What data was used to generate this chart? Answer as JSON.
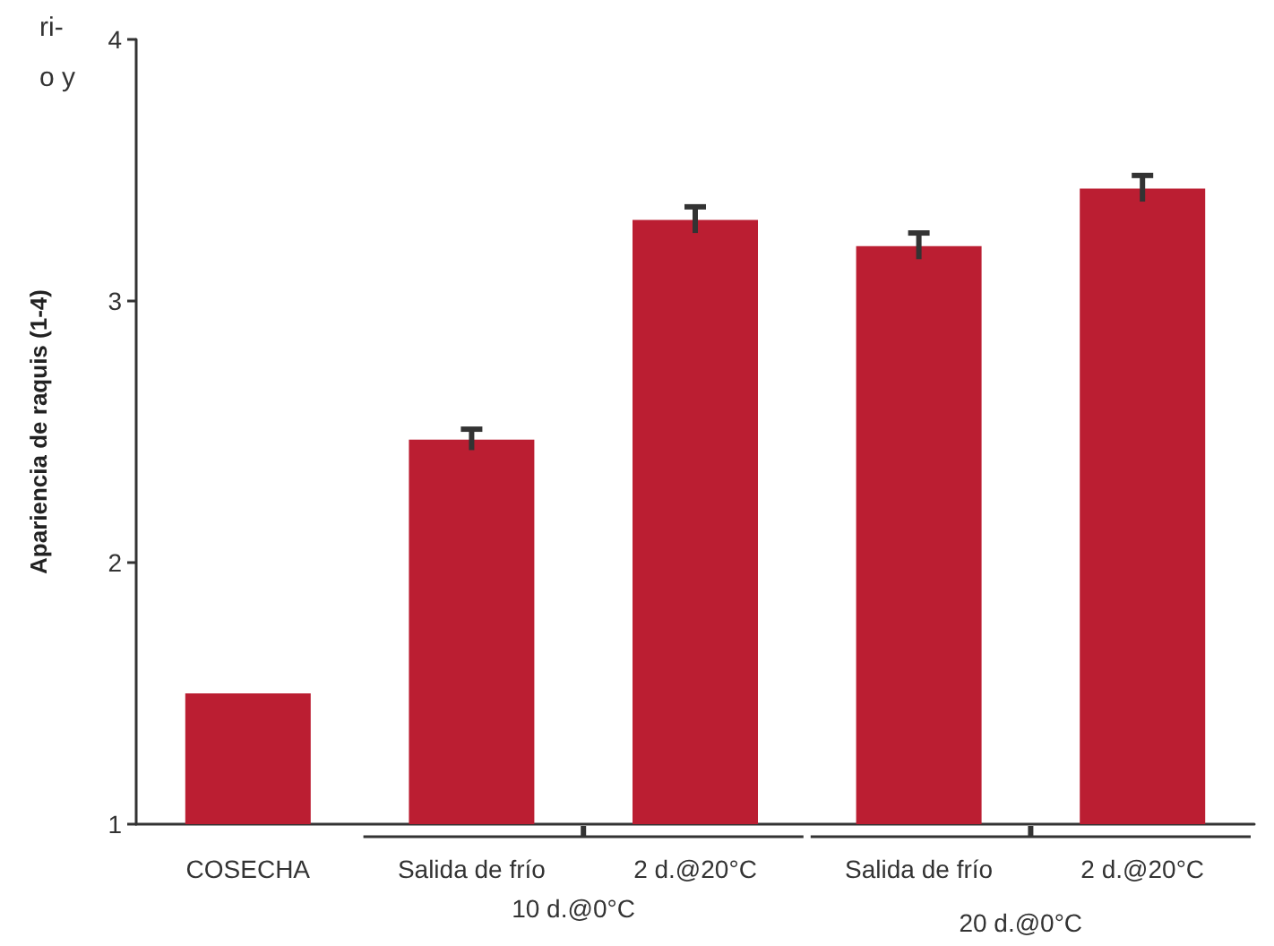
{
  "chart_data": {
    "type": "bar",
    "ylabel": "Apariencia de raquis (1-4)",
    "categories": [
      "COSECHA",
      "Salida de frío",
      "2 d.@20°C",
      "Salida de frío",
      "2 d.@20°C"
    ],
    "values": [
      1.5,
      2.47,
      3.31,
      3.21,
      3.43
    ],
    "errors": [
      null,
      0.04,
      0.05,
      0.05,
      0.05
    ],
    "color": "#bb1e32",
    "ylim": [
      1,
      4
    ],
    "yticks": [
      1,
      2,
      3,
      4
    ],
    "grid": false,
    "annotations": [
      "10 d.@0°C",
      "20 d.@0°C",
      "ri-",
      "o y"
    ]
  }
}
